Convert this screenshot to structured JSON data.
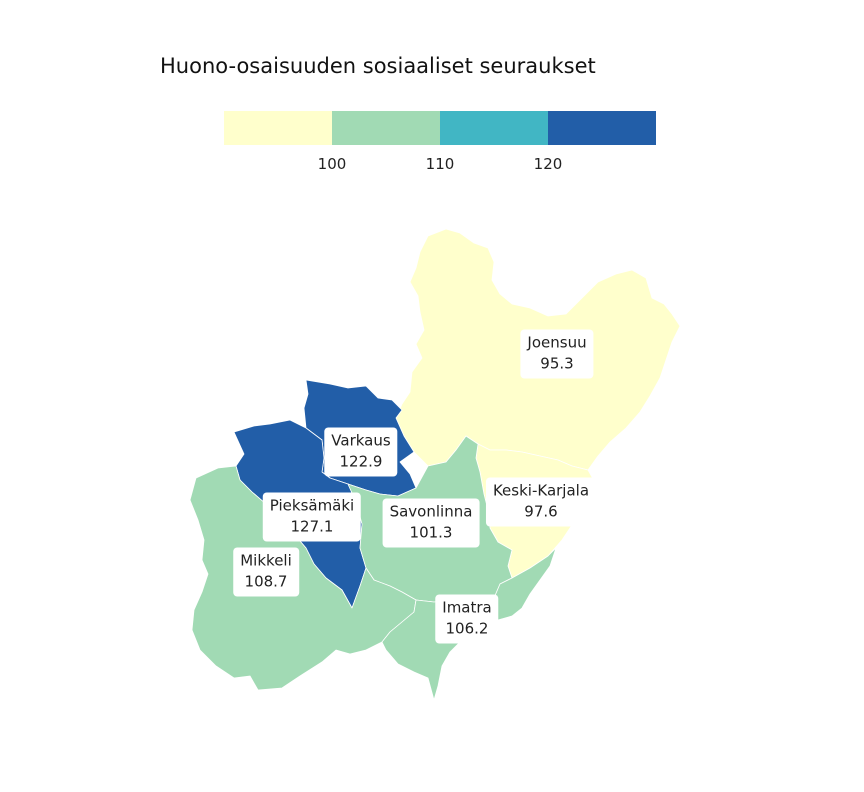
{
  "title": "Huono-osaisuuden sosiaaliset seuraukset",
  "legend": {
    "colors": [
      "#ffffcc",
      "#a1dab4",
      "#41b6c4",
      "#225ea8"
    ],
    "ticks": [
      "100",
      "110",
      "120"
    ]
  },
  "regions": {
    "joensuu": {
      "name": "Joensuu",
      "value": "95.3",
      "color": "#ffffcc"
    },
    "keski_karjala": {
      "name": "Keski-Karjala",
      "value": "97.6",
      "color": "#ffffcc"
    },
    "varkaus": {
      "name": "Varkaus",
      "value": "122.9",
      "color": "#225ea8"
    },
    "pieksamaki": {
      "name": "Pieksämäki",
      "value": "127.1",
      "color": "#225ea8"
    },
    "savonlinna": {
      "name": "Savonlinna",
      "value": "101.3",
      "color": "#a1dab4"
    },
    "mikkeli": {
      "name": "Mikkeli",
      "value": "108.7",
      "color": "#a1dab4"
    },
    "imatra": {
      "name": "Imatra",
      "value": "106.2",
      "color": "#a1dab4"
    }
  }
}
